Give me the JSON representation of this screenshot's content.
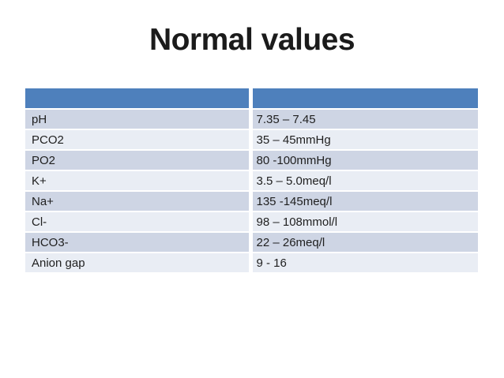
{
  "slide": {
    "title": "Normal values"
  },
  "table": {
    "header": {
      "label": "",
      "value": ""
    },
    "rows": [
      {
        "label": "pH",
        "value": "7.35 – 7.45"
      },
      {
        "label": "PCO2",
        "value": "35 – 45mmHg"
      },
      {
        "label": "PO2",
        "value": "80 -100mmHg"
      },
      {
        "label": "K+",
        "value": "3.5 – 5.0meq/l"
      },
      {
        "label": "Na+",
        "value": "135 -145meq/l"
      },
      {
        "label": "Cl-",
        "value": "98 – 108mmol/l"
      },
      {
        "label": "HCO3-",
        "value": "22 – 26meq/l"
      },
      {
        "label": "Anion gap",
        "value": "9 - 16"
      }
    ]
  },
  "colors": {
    "background": "#FFFFFF",
    "header_bg": "#4E80BC",
    "row_band_dark": "#CED5E4",
    "row_band_light": "#E9EDF4",
    "title_text": "#1B1B1B",
    "cell_text": "#1F1F1F"
  }
}
